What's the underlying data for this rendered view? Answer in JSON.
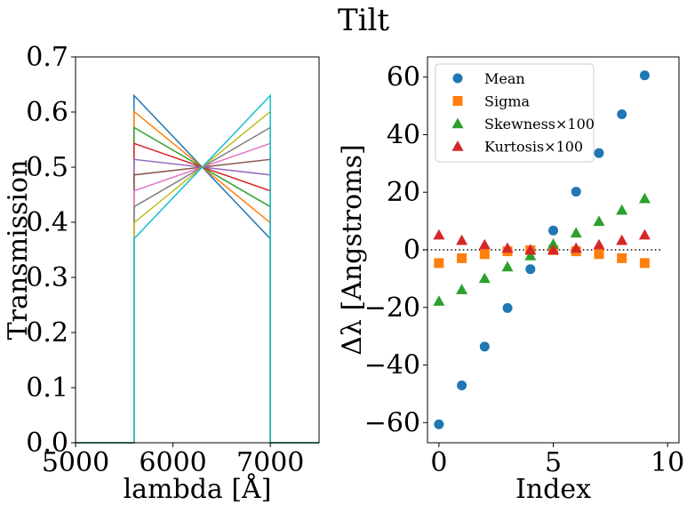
{
  "figure": {
    "title": "Tilt"
  },
  "chart_data": [
    {
      "type": "line",
      "title": "",
      "xlabel": "lambda [Å]",
      "ylabel": "Transmission",
      "xlim": [
        5000,
        7500
      ],
      "ylim": [
        0,
        0.7
      ],
      "xticks": [
        5000,
        6000,
        7000
      ],
      "xtick_labels": [
        "5000",
        "6000",
        "7000"
      ],
      "yticks": [
        0,
        0.1,
        0.2,
        0.3,
        0.4,
        0.5,
        0.6,
        0.7
      ],
      "ytick_labels": [
        "0.0",
        "0.1",
        "0.2",
        "0.3",
        "0.4",
        "0.5",
        "0.6",
        "0.7"
      ],
      "grid": false,
      "x_range": [
        5000,
        5600,
        5600,
        7000,
        7000,
        7500
      ],
      "series": [
        {
          "color": "#1f77b4",
          "start": 0.63,
          "end": 0.37
        },
        {
          "color": "#ff7f0e",
          "start": 0.601,
          "end": 0.399
        },
        {
          "color": "#2ca02c",
          "start": 0.572,
          "end": 0.428
        },
        {
          "color": "#d62728",
          "start": 0.543,
          "end": 0.457
        },
        {
          "color": "#9467bd",
          "start": 0.514,
          "end": 0.486
        },
        {
          "color": "#8c564b",
          "start": 0.486,
          "end": 0.514
        },
        {
          "color": "#e377c2",
          "start": 0.457,
          "end": 0.543
        },
        {
          "color": "#7f7f7f",
          "start": 0.428,
          "end": 0.572
        },
        {
          "color": "#bcbd22",
          "start": 0.399,
          "end": 0.601
        },
        {
          "color": "#17becf",
          "start": 0.37,
          "end": 0.63
        }
      ]
    },
    {
      "type": "scatter",
      "title": "",
      "xlabel": "Index",
      "ylabel": "Δλ [Angstroms]",
      "xlim": [
        -0.5,
        10.5
      ],
      "ylim": [
        -67,
        67
      ],
      "xticks": [
        0,
        5,
        10
      ],
      "xtick_labels": [
        "0",
        "5",
        "10"
      ],
      "yticks": [
        -60,
        -40,
        -20,
        0,
        20,
        40,
        60
      ],
      "ytick_labels": [
        "−60",
        "−40",
        "−20",
        "0",
        "20",
        "40",
        "60"
      ],
      "grid": false,
      "zero_line": {
        "y": 0,
        "style": "dotted",
        "x_from": -0.7,
        "x_to": 9.7
      },
      "legend_position": "top-left",
      "x": [
        0,
        1,
        2,
        3,
        4,
        5,
        6,
        7,
        8,
        9
      ],
      "series": [
        {
          "name": "Mean",
          "marker": "circle",
          "color": "#1f77b4",
          "values": [
            -60.6,
            -47.1,
            -33.6,
            -20.2,
            -6.7,
            6.7,
            20.2,
            33.6,
            47.1,
            60.6
          ]
        },
        {
          "name": "Sigma",
          "marker": "square",
          "color": "#ff7f0e",
          "values": [
            -4.6,
            -2.9,
            -1.5,
            -0.5,
            -0.1,
            -0.1,
            -0.5,
            -1.5,
            -2.9,
            -4.6
          ]
        },
        {
          "name": "Skewness×100",
          "marker": "triangle",
          "color": "#2ca02c",
          "values": [
            -17.8,
            -13.8,
            -9.9,
            -5.9,
            -2.0,
            2.0,
            5.9,
            9.9,
            13.8,
            17.8
          ]
        },
        {
          "name": "Kurtosis×100",
          "marker": "triangle",
          "color": "#d62728",
          "values": [
            5.2,
            3.3,
            1.8,
            0.6,
            0.0,
            0.0,
            0.6,
            1.8,
            3.3,
            5.2
          ]
        }
      ]
    }
  ]
}
